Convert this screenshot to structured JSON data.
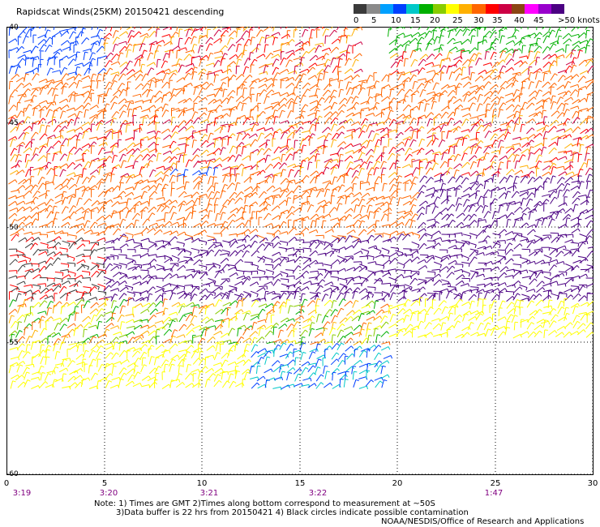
{
  "title": "Rapidscat Winds(25KM) 20150421 descending",
  "legend": {
    "colors": [
      "#3a3a3a",
      "#8a8a8a",
      "#00a0ff",
      "#0040ff",
      "#00c8c8",
      "#00b000",
      "#88cc00",
      "#ffff00",
      "#ffb000",
      "#ff6600",
      "#ff0000",
      "#cc0044",
      "#8b4513",
      "#ff00ff",
      "#9900cc",
      "#4b0082"
    ],
    "ticks": [
      "0",
      "5",
      "10",
      "15",
      "20",
      "25",
      "30",
      "35",
      "40",
      "45",
      ">50 knots"
    ]
  },
  "axes": {
    "lat_labels": [
      "-40",
      "-45",
      "-50",
      "-55",
      "-60"
    ],
    "lon_labels": [
      "0",
      "5",
      "10",
      "15",
      "20",
      "25",
      "30"
    ],
    "time_labels": [
      "3:19",
      "3:20",
      "3:21",
      "3:22",
      "1:47"
    ]
  },
  "notes": {
    "line1": "Note: 1) Times are GMT 2)Times along bottom correspond to measurement at ~50S",
    "line2": "3)Data buffer is 22 hrs from 20150421 4) Black circles indicate possible contamination",
    "line3": "NOAA/NESDIS/Office of Research and Applications"
  }
}
